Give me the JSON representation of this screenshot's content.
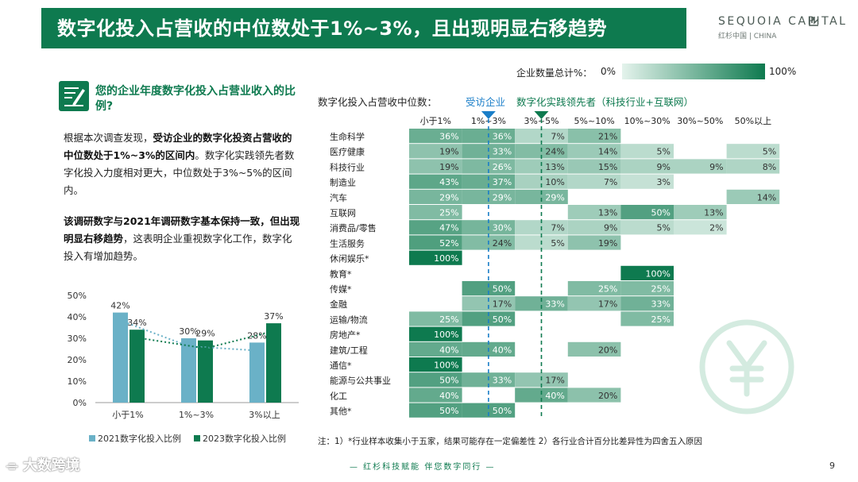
{
  "header": {
    "title": "数字化投入占营收的中位数处于1%~3%，且出现明显右移趋势",
    "logo_main": "SEQUOIA CAPITAL",
    "logo_sub": "红杉中国 | CHINA"
  },
  "question": "您的企业年度数字化投入占营业收入的比例?",
  "paragraph1": {
    "p1": "根据本次调查发现，",
    "p2": "受访企业的数字化投资占营收的中位数处于1%~3%的区间内",
    "p3": "。数字化实践领先者数字化投入力度相对更大，中位数处于3%~5%的区间内。"
  },
  "paragraph2": {
    "p1": "该调研数字与2021年调研数字基本保持一致，但出现明显右移趋势",
    "p2": "，这表明企业重视数字化工作，数字化投入有增加趋势。"
  },
  "heatmap_header": {
    "count_label": "企业数量总计%：",
    "scale_min": "0%",
    "scale_max": "100%",
    "median_label": "数字化投入占营收中位数：",
    "series1": "受访企业",
    "series2": "数字化实践领先者（科技行业+互联网）"
  },
  "note": "注：1）*行业样本收集小于五家，结果可能存在一定偏差性 2）各行业合计百分比差异性为四舍五入原因",
  "footer": "— 红杉科技赋能   伴您数字同行 —",
  "page_number": "9",
  "watermark": "大数跨境",
  "colors": {
    "brand_green": "#0e7a4f",
    "bar_2021": "#6ab1c7",
    "bar_2023": "#0e7a4f",
    "marker_blue": "#1a7ec8"
  },
  "chart_data": [
    {
      "type": "bar",
      "title": "",
      "categories": [
        "小于1%",
        "1%~3%",
        "3%以上"
      ],
      "series": [
        {
          "name": "2021数字化投入比例",
          "values": [
            42,
            30,
            28
          ]
        },
        {
          "name": "2023数字化投入比例",
          "values": [
            34,
            29,
            37
          ]
        }
      ],
      "y_tick_labels": [
        "50%",
        "40%",
        "30%",
        "20%",
        "10%",
        "0%"
      ],
      "ylim": [
        0,
        50
      ],
      "value_suffix": "%",
      "trend_lines": [
        "2021 dotted",
        "2023 dotted"
      ],
      "legend": "bottom"
    },
    {
      "type": "heatmap",
      "columns": [
        "小于1%",
        "1%~3%",
        "3%~5%",
        "5%~10%",
        "10%~30%",
        "30%~50%",
        "50%以上"
      ],
      "rows": [
        {
          "label": "生命科学",
          "values": [
            36,
            36,
            7,
            21,
            null,
            null,
            null
          ]
        },
        {
          "label": "医疗健康",
          "values": [
            19,
            33,
            24,
            14,
            5,
            null,
            5
          ]
        },
        {
          "label": "科技行业",
          "values": [
            19,
            26,
            13,
            15,
            9,
            9,
            8
          ]
        },
        {
          "label": "制造业",
          "values": [
            43,
            37,
            10,
            7,
            3,
            null,
            null
          ]
        },
        {
          "label": "汽车",
          "values": [
            29,
            29,
            29,
            null,
            null,
            null,
            14
          ]
        },
        {
          "label": "互联网",
          "values": [
            25,
            null,
            null,
            13,
            50,
            13,
            null
          ]
        },
        {
          "label": "消费品/零售",
          "values": [
            47,
            30,
            7,
            9,
            5,
            2,
            null
          ]
        },
        {
          "label": "生活服务",
          "values": [
            52,
            24,
            5,
            19,
            null,
            null,
            null
          ]
        },
        {
          "label": "休闲娱乐*",
          "values": [
            100,
            null,
            null,
            null,
            null,
            null,
            null
          ]
        },
        {
          "label": "教育*",
          "values": [
            null,
            null,
            null,
            null,
            100,
            null,
            null
          ]
        },
        {
          "label": "传媒*",
          "values": [
            null,
            50,
            null,
            25,
            25,
            null,
            null
          ]
        },
        {
          "label": "金融",
          "values": [
            null,
            17,
            33,
            17,
            33,
            null,
            null
          ]
        },
        {
          "label": "运输/物流",
          "values": [
            25,
            50,
            null,
            null,
            25,
            null,
            null
          ]
        },
        {
          "label": "房地产*",
          "values": [
            100,
            null,
            null,
            null,
            null,
            null,
            null
          ]
        },
        {
          "label": "建筑/工程",
          "values": [
            40,
            40,
            null,
            20,
            null,
            null,
            null
          ]
        },
        {
          "label": "通信*",
          "values": [
            100,
            null,
            null,
            null,
            null,
            null,
            null
          ]
        },
        {
          "label": "能源与公共事业",
          "values": [
            50,
            33,
            17,
            null,
            null,
            null,
            null
          ]
        },
        {
          "label": "化工",
          "values": [
            40,
            null,
            40,
            20,
            null,
            null,
            null
          ]
        },
        {
          "label": "其他*",
          "values": [
            50,
            50,
            null,
            null,
            null,
            null,
            null
          ]
        }
      ],
      "value_suffix": "%",
      "color_scale": {
        "min": 0,
        "max": 100
      },
      "median_markers": [
        {
          "name": "受访企业",
          "column": "1%~3%"
        },
        {
          "name": "数字化实践领先者（科技行业+互联网）",
          "column": "3%~5%"
        }
      ]
    }
  ]
}
